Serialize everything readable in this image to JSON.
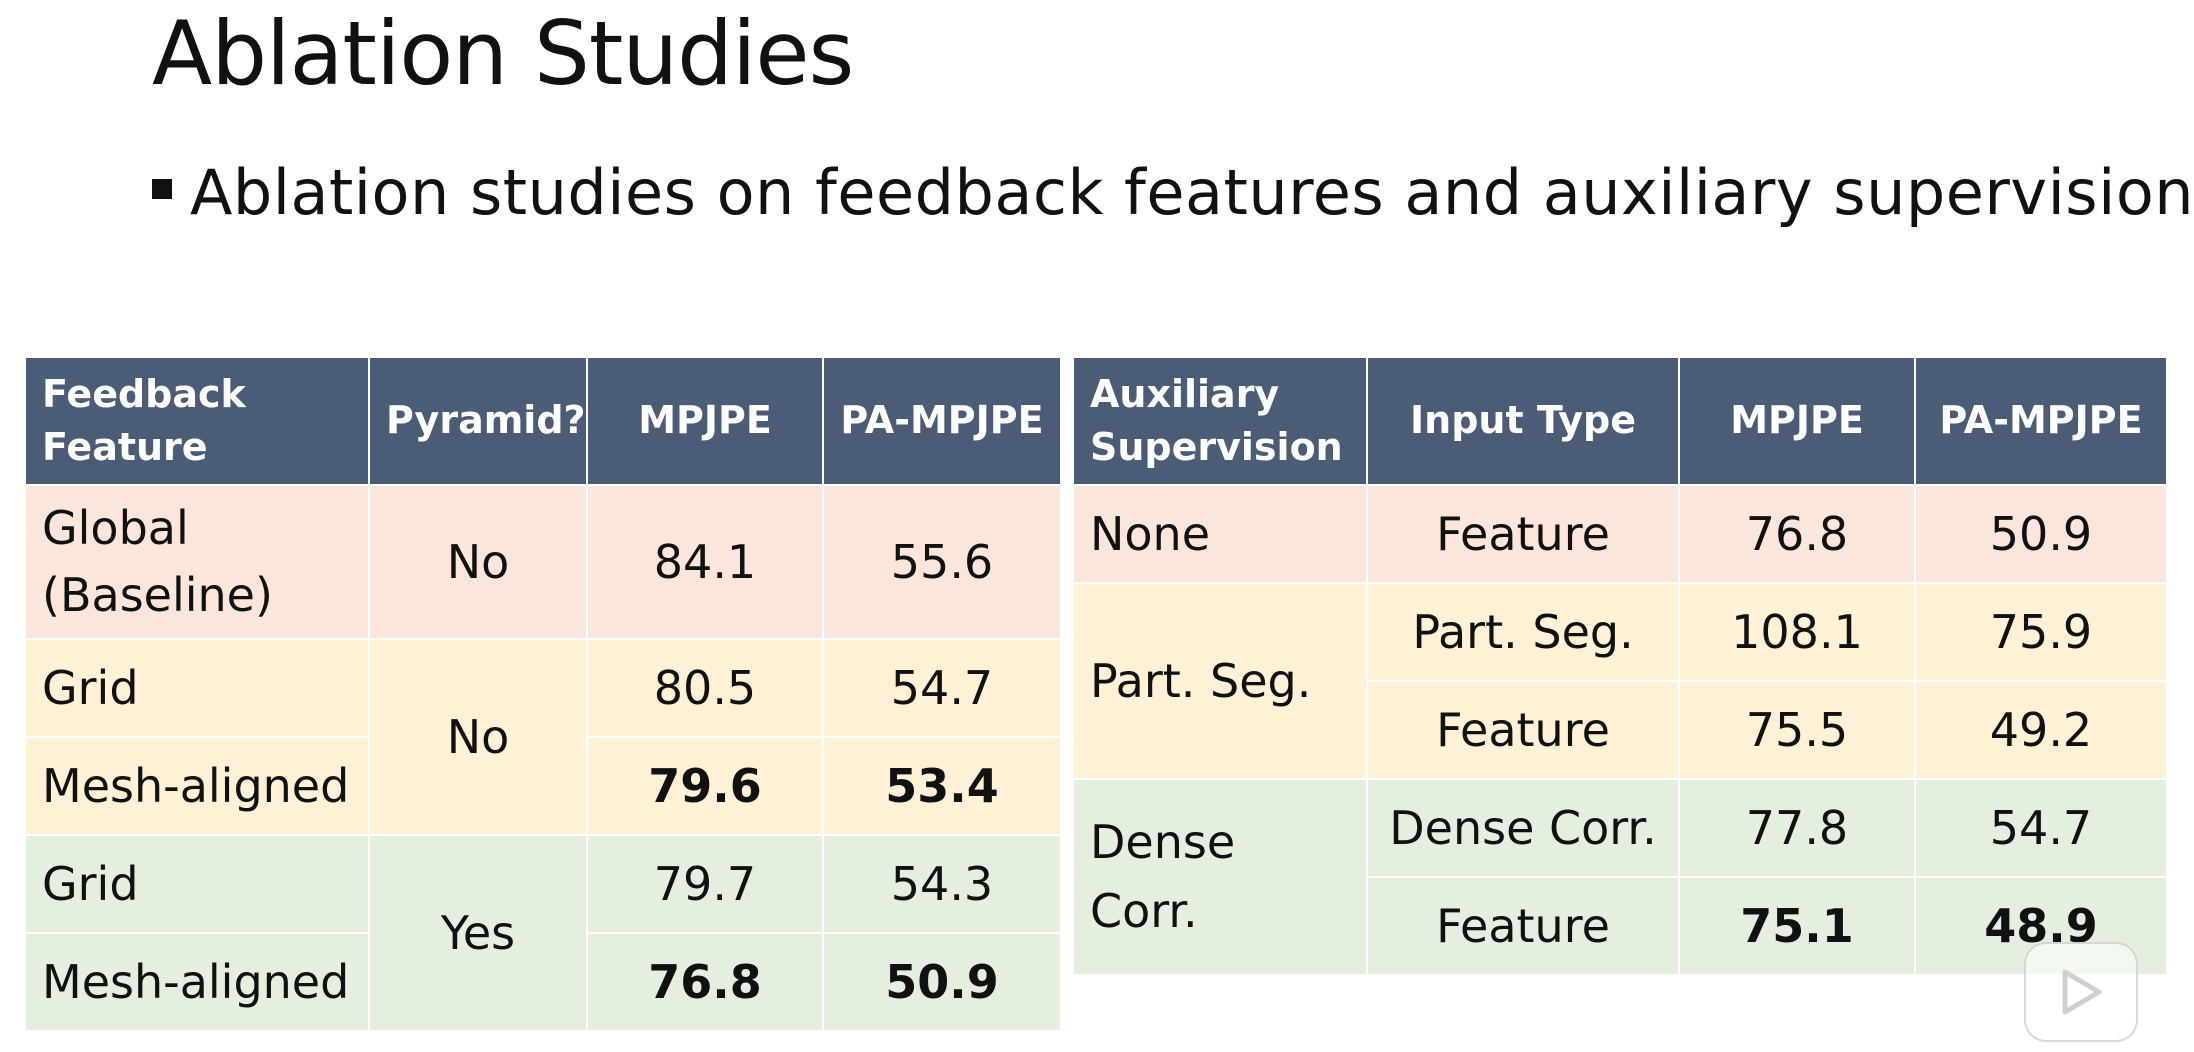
{
  "slide": {
    "title": "Ablation Studies",
    "bullet": "Ablation studies on feedback features and auxiliary supervision"
  },
  "colors": {
    "header_bg": "#4b5c76",
    "row_orange": "#fce6dc",
    "row_yellow": "#fef1d5",
    "row_green": "#e5efe0"
  },
  "table_left": {
    "headers": [
      "Feedback\nFeature",
      "Pyramid?",
      "MPJPE",
      "PA-MPJPE"
    ],
    "rows": [
      {
        "feature": "Global\n(Baseline)",
        "pyramid": "No",
        "mpjpe": "84.1",
        "pa_mpjpe": "55.6"
      },
      {
        "feature": "Grid",
        "pyramid": "No",
        "mpjpe": "80.5",
        "pa_mpjpe": "54.7"
      },
      {
        "feature": "Mesh-aligned",
        "pyramid": "No",
        "mpjpe": "79.6",
        "pa_mpjpe": "53.4",
        "bold": true
      },
      {
        "feature": "Grid",
        "pyramid": "Yes",
        "mpjpe": "79.7",
        "pa_mpjpe": "54.3"
      },
      {
        "feature": "Mesh-aligned",
        "pyramid": "Yes",
        "mpjpe": "76.8",
        "pa_mpjpe": "50.9",
        "bold": true
      }
    ]
  },
  "table_right": {
    "headers": [
      "Auxiliary\nSupervision",
      "Input Type",
      "MPJPE",
      "PA-MPJPE"
    ],
    "rows": [
      {
        "supervision": "None",
        "input": "Feature",
        "mpjpe": "76.8",
        "pa_mpjpe": "50.9"
      },
      {
        "supervision": "Part. Seg.",
        "input": "Part. Seg.",
        "mpjpe": "108.1",
        "pa_mpjpe": "75.9"
      },
      {
        "supervision": "Part. Seg.",
        "input": "Feature",
        "mpjpe": "75.5",
        "pa_mpjpe": "49.2"
      },
      {
        "supervision": "Dense Corr.",
        "input": "Dense Corr.",
        "mpjpe": "77.8",
        "pa_mpjpe": "54.7"
      },
      {
        "supervision": "Dense Corr.",
        "input": "Feature",
        "mpjpe": "75.1",
        "pa_mpjpe": "48.9",
        "bold": true
      }
    ]
  },
  "overlay": {
    "icon": "play-icon"
  }
}
